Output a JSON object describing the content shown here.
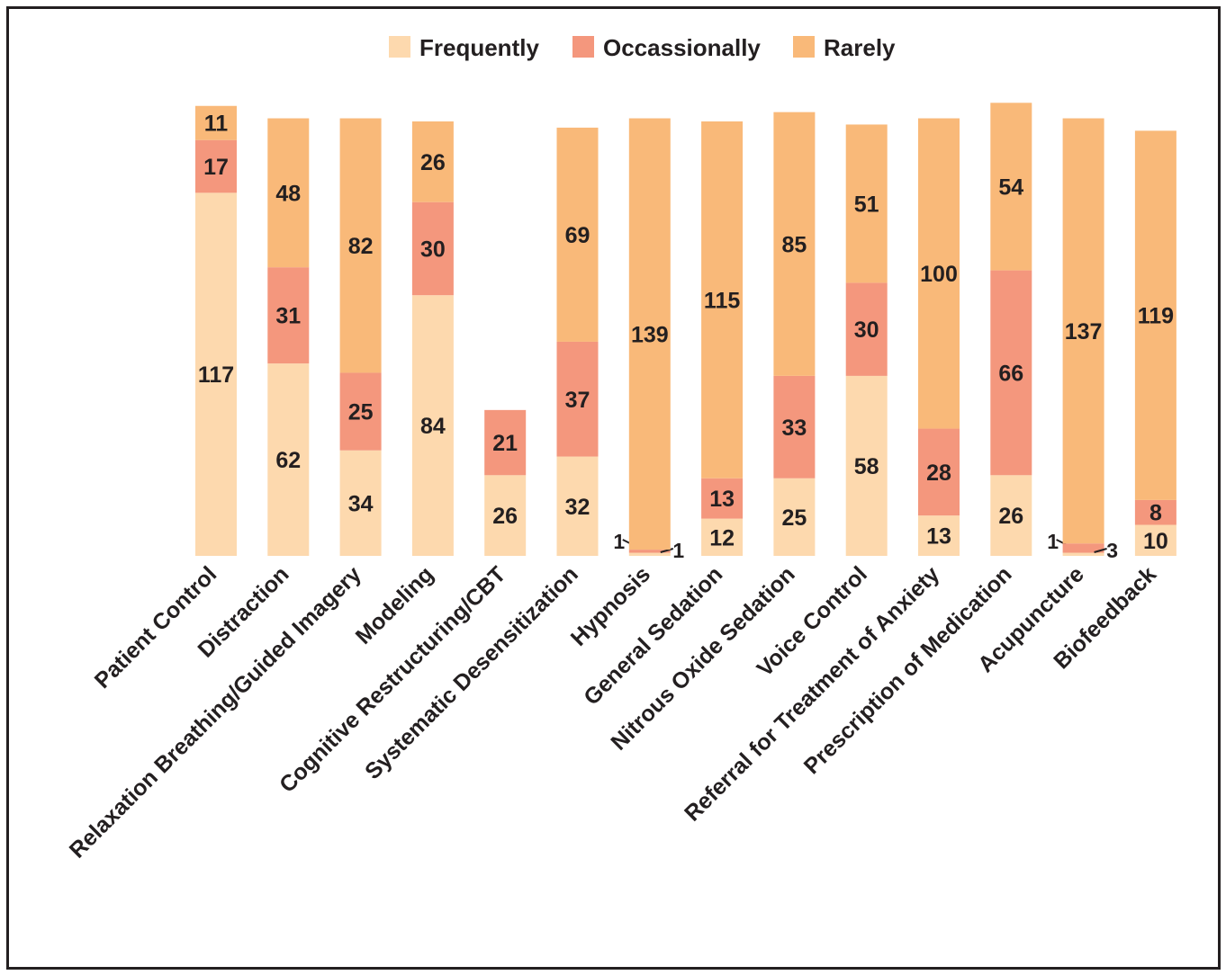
{
  "chart_data": {
    "type": "bar",
    "stacked": true,
    "title": "",
    "xlabel": "",
    "ylabel": "",
    "ylim": [
      0,
      150
    ],
    "grid": false,
    "legend": {
      "placement": "top-center"
    },
    "categories": [
      "Patient Control",
      "Distraction",
      "Relaxation Breathing/Guided Imagery",
      "Modeling",
      "Cognitive Restructuring/CBT",
      "Systematic Desensitization",
      "Hypnosis",
      "General Sedation",
      "Nitrous Oxide Sedation",
      "Voice Control",
      "Referral for Treatment of Anxiety",
      "Prescription of Medication",
      "Acupuncture",
      "Biofeedback"
    ],
    "series": [
      {
        "name": "Frequently",
        "color": "#fdd9ae",
        "values": [
          117,
          62,
          34,
          84,
          26,
          32,
          1,
          12,
          25,
          58,
          13,
          26,
          1,
          10
        ]
      },
      {
        "name": "Occassionally",
        "color": "#f4977d",
        "values": [
          17,
          31,
          25,
          30,
          21,
          37,
          1,
          13,
          33,
          30,
          28,
          66,
          3,
          8
        ]
      },
      {
        "name": "Rarely",
        "color": "#f9b979",
        "values": [
          11,
          48,
          82,
          26,
          0,
          69,
          139,
          115,
          85,
          51,
          100,
          54,
          137,
          119
        ]
      }
    ]
  }
}
